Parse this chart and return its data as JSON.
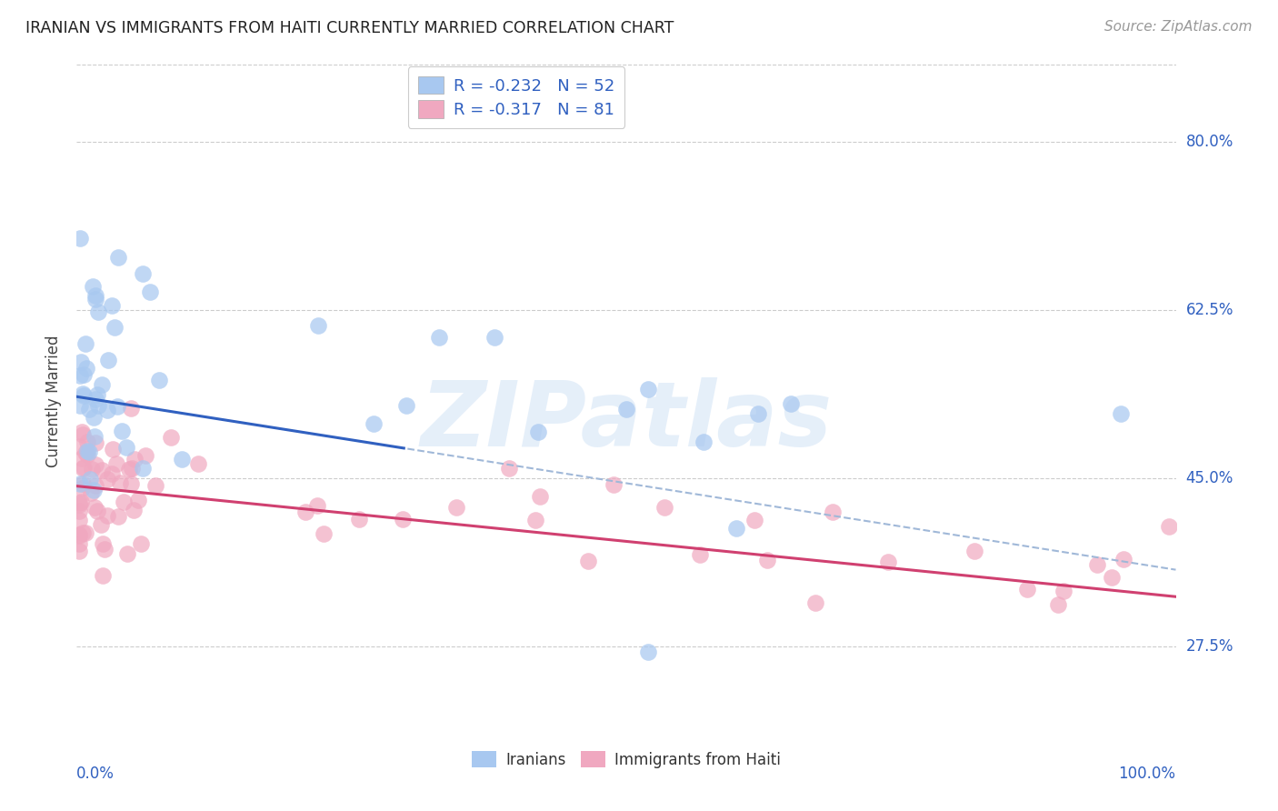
{
  "title": "IRANIAN VS IMMIGRANTS FROM HAITI CURRENTLY MARRIED CORRELATION CHART",
  "source": "Source: ZipAtlas.com",
  "ylabel": "Currently Married",
  "ytick_labels": [
    "27.5%",
    "45.0%",
    "62.5%",
    "80.0%"
  ],
  "ytick_vals": [
    0.275,
    0.45,
    0.625,
    0.8
  ],
  "xlim": [
    0.0,
    1.0
  ],
  "ylim": [
    0.18,
    0.88
  ],
  "series1_label": "Iranians",
  "series2_label": "Immigrants from Haiti",
  "series1_color": "#a8c8f0",
  "series2_color": "#f0a8c0",
  "line1_color": "#3060c0",
  "line2_color": "#d04070",
  "line1_dash_color": "#a0b8d8",
  "watermark": "ZIPatlas",
  "background_color": "#ffffff",
  "legend_label1": "R = -0.232   N = 52",
  "legend_label2": "R = -0.317   N = 81",
  "legend_text_color": "#3060c0",
  "ytick_color": "#3060c0",
  "xtick_color": "#3060c0",
  "source_color": "#999999",
  "title_color": "#222222"
}
